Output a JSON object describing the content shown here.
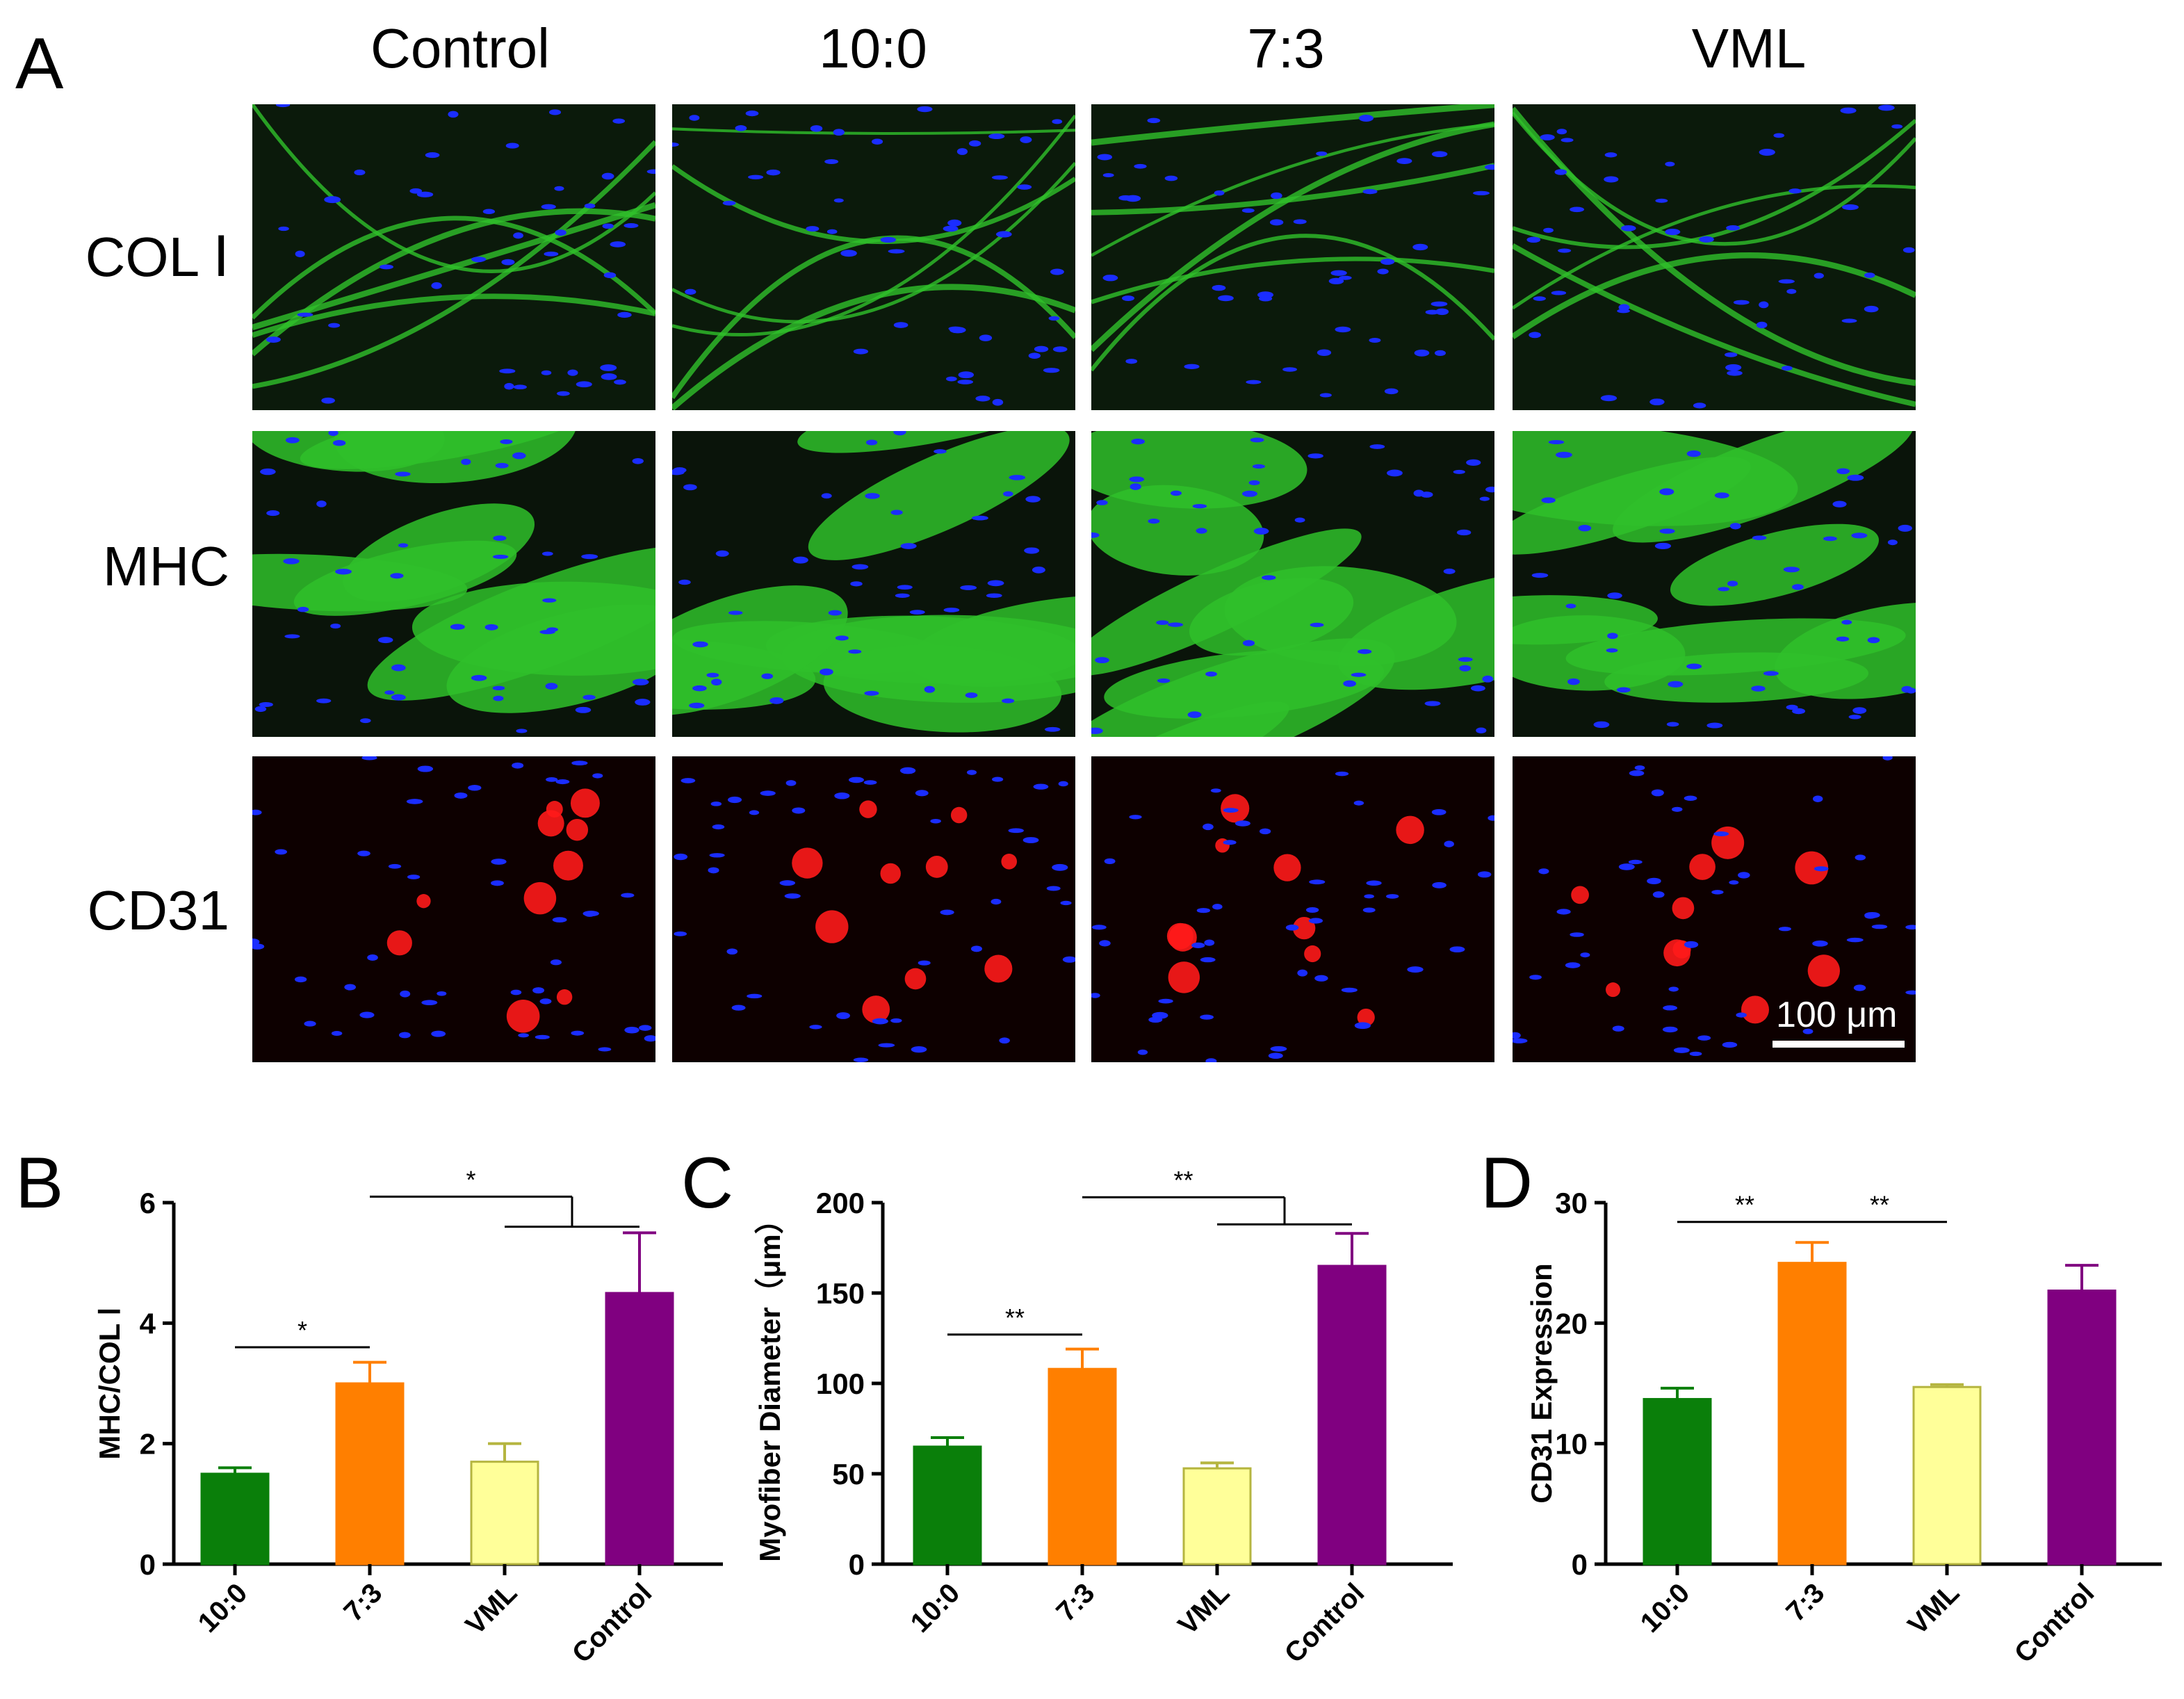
{
  "panel_letters": {
    "a": "A",
    "b": "B",
    "c": "C",
    "d": "D"
  },
  "micrograph_grid": {
    "columns": [
      "Control",
      "10:0",
      "7:3",
      "VML"
    ],
    "rows": [
      "COL Ⅰ",
      "MHC",
      "CD31"
    ],
    "scale_bar_label": "100 μm",
    "colors": {
      "stain_green": "#2fc02a",
      "nuclei_blue": "#1a2dff",
      "stain_red": "#ff1a1a",
      "background": "#000000"
    }
  },
  "chart_data": [
    {
      "type": "bar",
      "categories": [
        "10:0",
        "7:3",
        "VML",
        "Control"
      ],
      "values": [
        1.5,
        3.0,
        1.7,
        4.5
      ],
      "errors": [
        0.1,
        0.35,
        0.3,
        1.0
      ],
      "colors": [
        "#0a7f0a",
        "#ff7f00",
        "#ffff99",
        "#800080"
      ],
      "ylabel": "MHC/COL Ⅰ",
      "ylim": [
        0,
        6
      ],
      "yticks": [
        0,
        2,
        4,
        6
      ],
      "significance": [
        {
          "from": "10:0",
          "to": "7:3",
          "label": "*"
        },
        {
          "from": "7:3",
          "to": "VML-Control",
          "label": "*"
        }
      ]
    },
    {
      "type": "bar",
      "categories": [
        "10:0",
        "7:3",
        "VML",
        "Control"
      ],
      "values": [
        65,
        108,
        53,
        165
      ],
      "errors": [
        5,
        11,
        3,
        18
      ],
      "colors": [
        "#0a7f0a",
        "#ff7f00",
        "#ffff99",
        "#800080"
      ],
      "ylabel": "Myofiber Diameter（μm）",
      "ylim": [
        0,
        200
      ],
      "yticks": [
        0,
        50,
        100,
        150,
        200
      ],
      "significance": [
        {
          "from": "10:0",
          "to": "7:3",
          "label": "**"
        },
        {
          "from": "7:3",
          "to": "VML-Control",
          "label": "**"
        }
      ]
    },
    {
      "type": "bar",
      "categories": [
        "10:0",
        "7:3",
        "VML",
        "Control"
      ],
      "values": [
        13.7,
        25.0,
        14.7,
        22.7
      ],
      "errors": [
        0.9,
        1.7,
        0.2,
        2.1
      ],
      "colors": [
        "#0a7f0a",
        "#ff7f00",
        "#ffff99",
        "#800080"
      ],
      "ylabel": "CD31 Expression",
      "ylim": [
        0,
        30
      ],
      "yticks": [
        0,
        10,
        20,
        30
      ],
      "significance": [
        {
          "from": "10:0",
          "to": "7:3",
          "label": "**"
        },
        {
          "from": "7:3",
          "to": "VML",
          "label": "**"
        }
      ]
    }
  ]
}
